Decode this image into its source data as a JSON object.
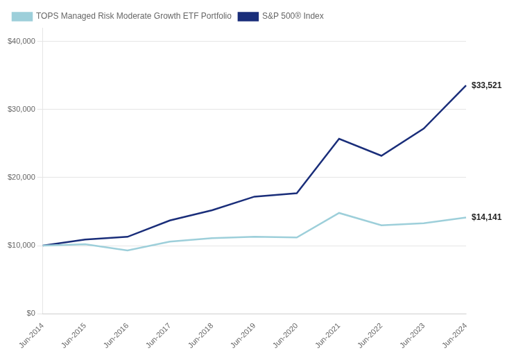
{
  "chart_data": {
    "type": "line",
    "categories": [
      "Jun-2014",
      "Jun-2015",
      "Jun-2016",
      "Jun-2017",
      "Jun-2018",
      "Jun-2019",
      "Jun-2020",
      "Jun-2021",
      "Jun-2022",
      "Jun-2023",
      "Jun-2024"
    ],
    "series": [
      {
        "name": "TOPS Managed Risk Moderate Growth ETF Portfolio",
        "color": "#9dcfda",
        "values": [
          10000,
          10200,
          9300,
          10600,
          11100,
          11300,
          11200,
          14800,
          13000,
          13300,
          14141
        ]
      },
      {
        "name": "S&P 500® Index",
        "color": "#1a2e7a",
        "values": [
          10000,
          10900,
          11300,
          13700,
          15200,
          17200,
          17700,
          25700,
          23200,
          27200,
          33521
        ]
      }
    ],
    "annotations": [
      {
        "text": "$33,521",
        "x": "Jun-2024",
        "y": 33521
      },
      {
        "text": "$14,141",
        "x": "Jun-2024",
        "y": 14141
      }
    ],
    "ylim": [
      0,
      42000
    ],
    "yticks": [
      {
        "value": 0,
        "label": "$0"
      },
      {
        "value": 10000,
        "label": "$10,000"
      },
      {
        "value": 20000,
        "label": "$20,000"
      },
      {
        "value": 30000,
        "label": "$30,000"
      },
      {
        "value": 40000,
        "label": "$40,000"
      }
    ],
    "grid": true,
    "legend": "top"
  }
}
